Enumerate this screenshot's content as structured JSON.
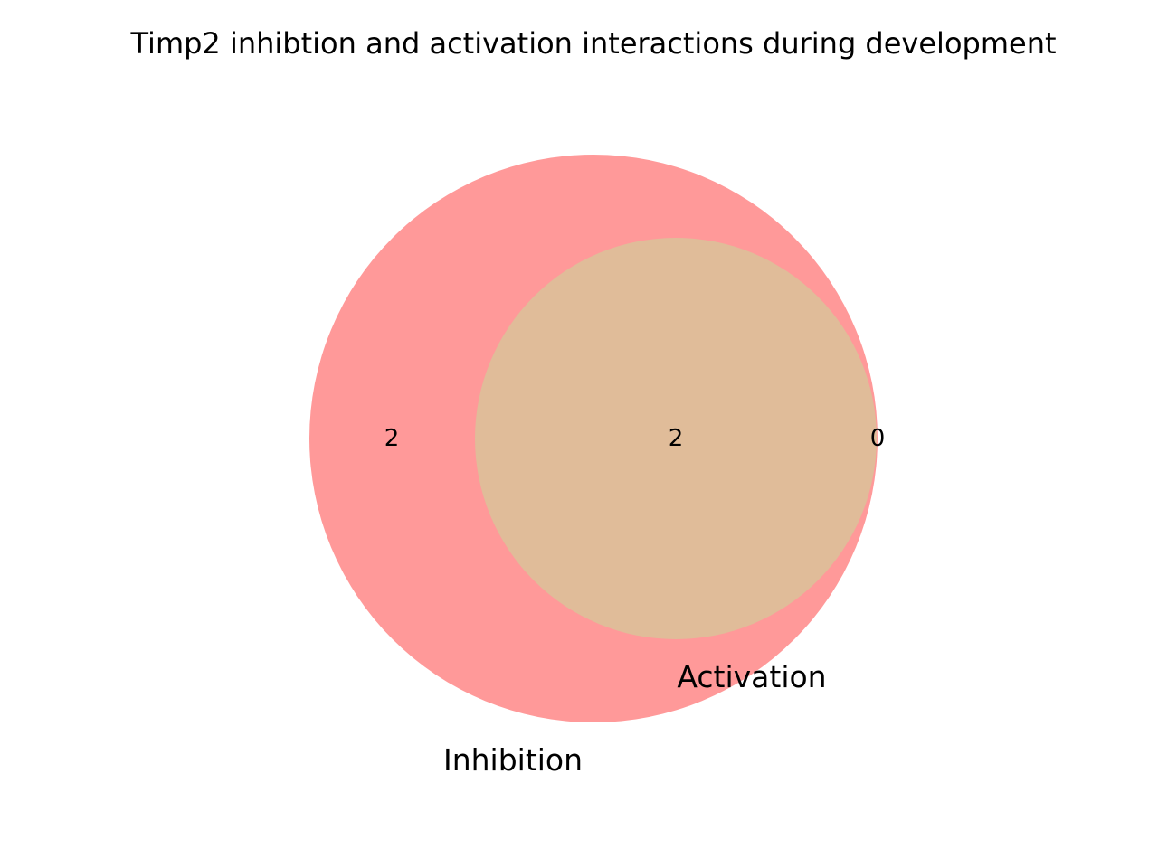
{
  "title": "Timp2 inhibtion and activation interactions during development",
  "sets": [
    {
      "name": "Inhibition",
      "color": "#ff9999"
    },
    {
      "name": "Activation",
      "color": "#e0bc99"
    }
  ],
  "regions": {
    "inhibition_only": "2",
    "both": "2",
    "activation_only": "0"
  }
}
